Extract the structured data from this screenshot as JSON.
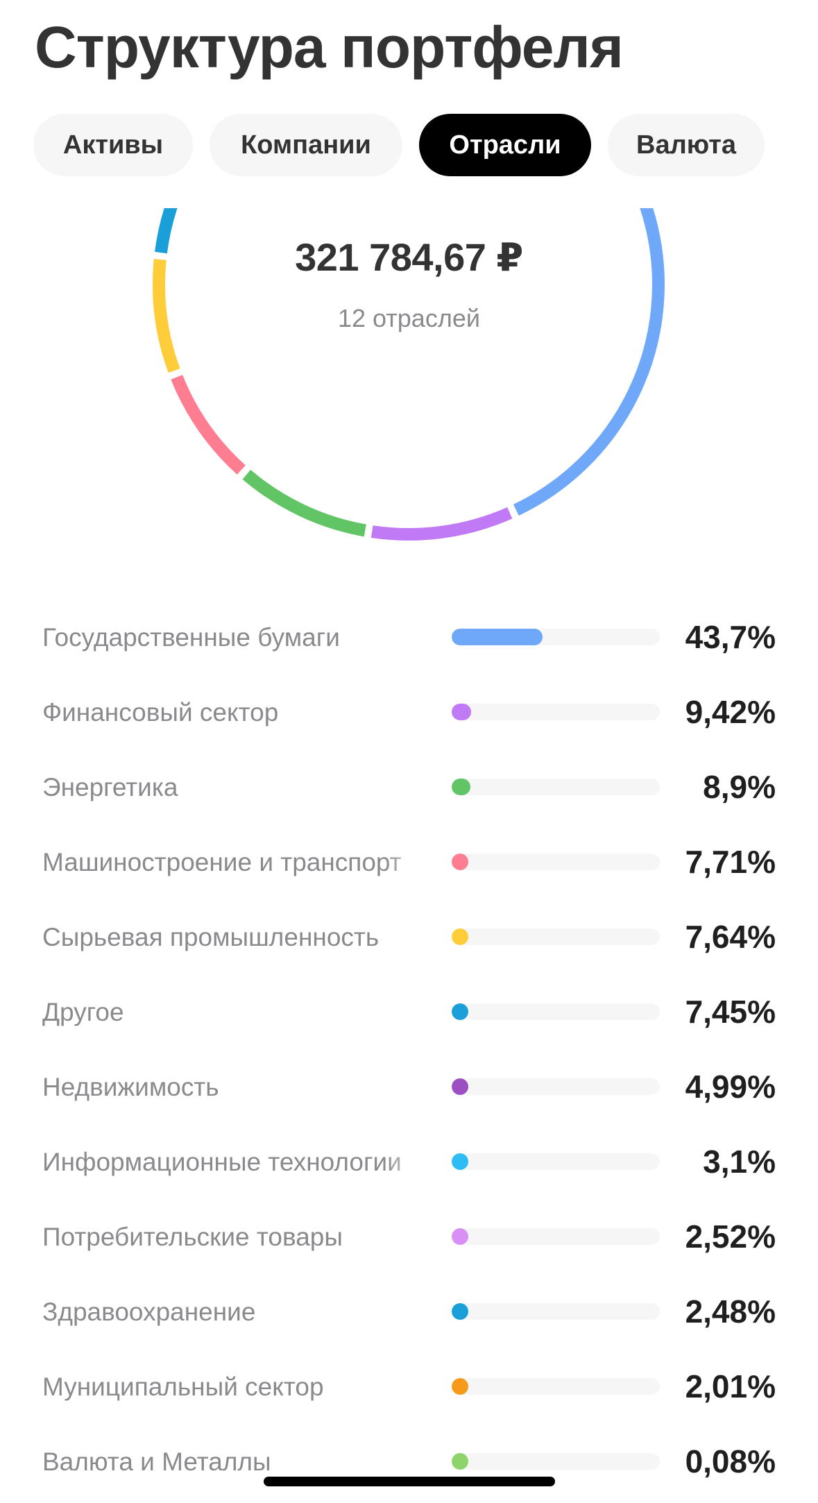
{
  "header": {
    "title": "Структура портфеля"
  },
  "tabs": [
    {
      "label": "Активы",
      "active": false
    },
    {
      "label": "Компании",
      "active": false
    },
    {
      "label": "Отрасли",
      "active": true
    },
    {
      "label": "Валюта",
      "active": false
    }
  ],
  "summary": {
    "total": "321 784,67 ₽",
    "subtitle": "12 отраслей"
  },
  "chart_data": {
    "type": "pie",
    "title": "",
    "categories": [
      "Государственные бумаги",
      "Финансовый сектор",
      "Энергетика",
      "Машиностроение и транспорт",
      "Сырьевая промышленность",
      "Другое",
      "Недвижимость",
      "Информационные технологии",
      "Потребительские товары",
      "Здравоохранение",
      "Муниципальный сектор",
      "Валюта и Металлы"
    ],
    "values": [
      43.7,
      9.42,
      8.9,
      7.71,
      7.64,
      7.45,
      4.99,
      3.1,
      2.52,
      2.48,
      2.01,
      0.08
    ],
    "value_labels": [
      "43,7%",
      "9,42%",
      "8,9%",
      "7,71%",
      "7,64%",
      "7,45%",
      "4,99%",
      "3,1%",
      "2,52%",
      "2,48%",
      "2,01%",
      "0,08%"
    ],
    "colors": [
      "#6fa8f8",
      "#c17af5",
      "#62c565",
      "#ff7d91",
      "#ffcd3a",
      "#1a9fd9",
      "#9c4fc3",
      "#2dbcf5",
      "#d890f7",
      "#1a9fd9",
      "#f59a1b",
      "#8fd46a"
    ],
    "style": "donut"
  }
}
